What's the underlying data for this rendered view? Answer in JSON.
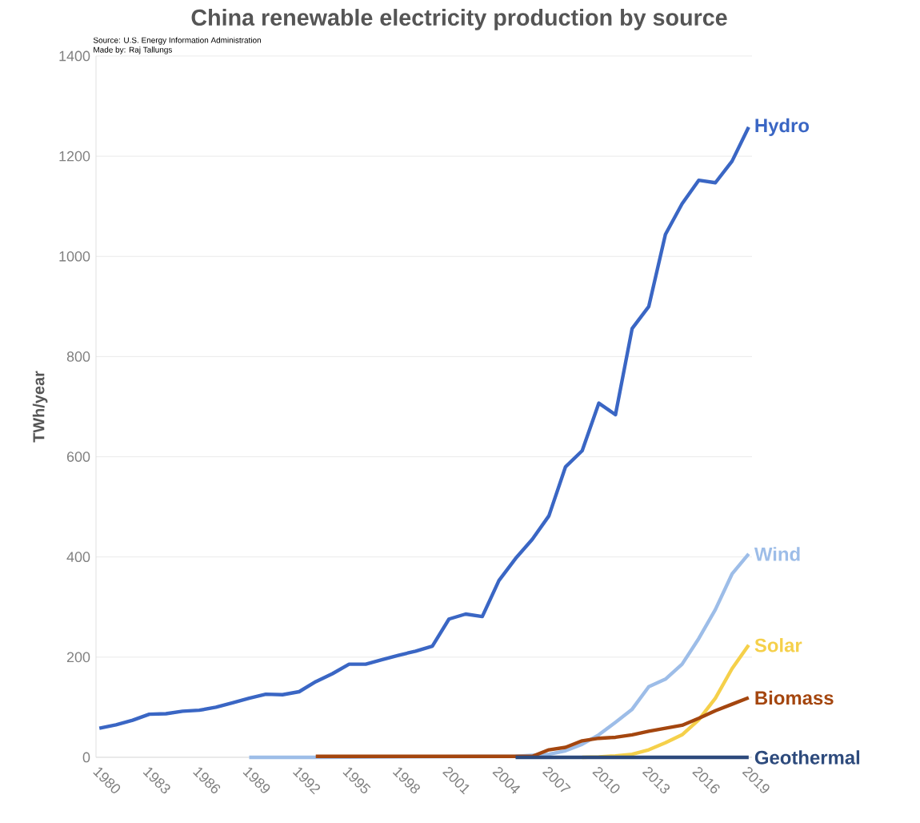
{
  "chart_data": {
    "type": "line",
    "title": "China renewable electricity production by source",
    "ylabel": "TWh/year",
    "annotations": [
      "Source: U.S. Energy Information Administration",
      "Made by: Raj Tallungs"
    ],
    "xlim": [
      1979.8,
      2019.2
    ],
    "xticks": [
      1980,
      1983,
      1986,
      1989,
      1992,
      1995,
      1998,
      2001,
      2004,
      2007,
      2010,
      2013,
      2016,
      2019
    ],
    "ylim": [
      0,
      1400
    ],
    "yticks": [
      0,
      200,
      400,
      600,
      800,
      1000,
      1200,
      1400
    ],
    "grid": "y",
    "marker": "none",
    "line_style": "solid",
    "series": [
      {
        "name": "Hydro",
        "color": "#3a66c4",
        "x": [
          1980,
          1981,
          1982,
          1983,
          1984,
          1985,
          1986,
          1987,
          1988,
          1989,
          1990,
          1991,
          1992,
          1993,
          1994,
          1995,
          1996,
          1997,
          1998,
          1999,
          2000,
          2001,
          2002,
          2003,
          2004,
          2005,
          2006,
          2007,
          2008,
          2009,
          2010,
          2011,
          2012,
          2013,
          2014,
          2015,
          2016,
          2017,
          2018,
          2019
        ],
        "values": [
          58,
          65,
          74,
          86,
          87,
          92,
          94,
          100,
          109,
          118,
          126,
          125,
          131,
          151,
          167,
          186,
          186,
          195,
          204,
          212,
          222,
          276,
          286,
          281,
          353,
          397,
          435,
          482,
          580,
          612,
          707,
          684,
          856,
          900,
          1044,
          1105,
          1152,
          1147,
          1190,
          1258
        ]
      },
      {
        "name": "Wind",
        "color": "#9dbde8",
        "x": [
          1989,
          1993,
          2005,
          2006,
          2007,
          2008,
          2009,
          2010,
          2011,
          2012,
          2013,
          2014,
          2015,
          2016,
          2017,
          2018,
          2019
        ],
        "values": [
          0,
          0,
          2,
          4,
          6,
          13,
          26,
          45,
          70,
          96,
          141,
          156,
          186,
          237,
          295,
          366,
          406
        ]
      },
      {
        "name": "Solar",
        "color": "#f5d04a",
        "x": [
          2009,
          2010,
          2011,
          2012,
          2013,
          2014,
          2015,
          2016,
          2017,
          2018,
          2019
        ],
        "values": [
          0,
          1,
          3,
          6,
          15,
          29,
          45,
          75,
          118,
          177,
          224
        ]
      },
      {
        "name": "Biomass",
        "color": "#a4460f",
        "x": [
          1993,
          2000,
          2006,
          2007,
          2008,
          2009,
          2010,
          2011,
          2012,
          2013,
          2014,
          2015,
          2016,
          2017,
          2018,
          2019
        ],
        "values": [
          2,
          2,
          2,
          15,
          20,
          33,
          38,
          40,
          45,
          52,
          58,
          64,
          78,
          93,
          106,
          119
        ]
      },
      {
        "name": "Geothermal",
        "color": "#2d4a7c",
        "x": [
          2005,
          2019
        ],
        "values": [
          0,
          0
        ]
      }
    ]
  }
}
